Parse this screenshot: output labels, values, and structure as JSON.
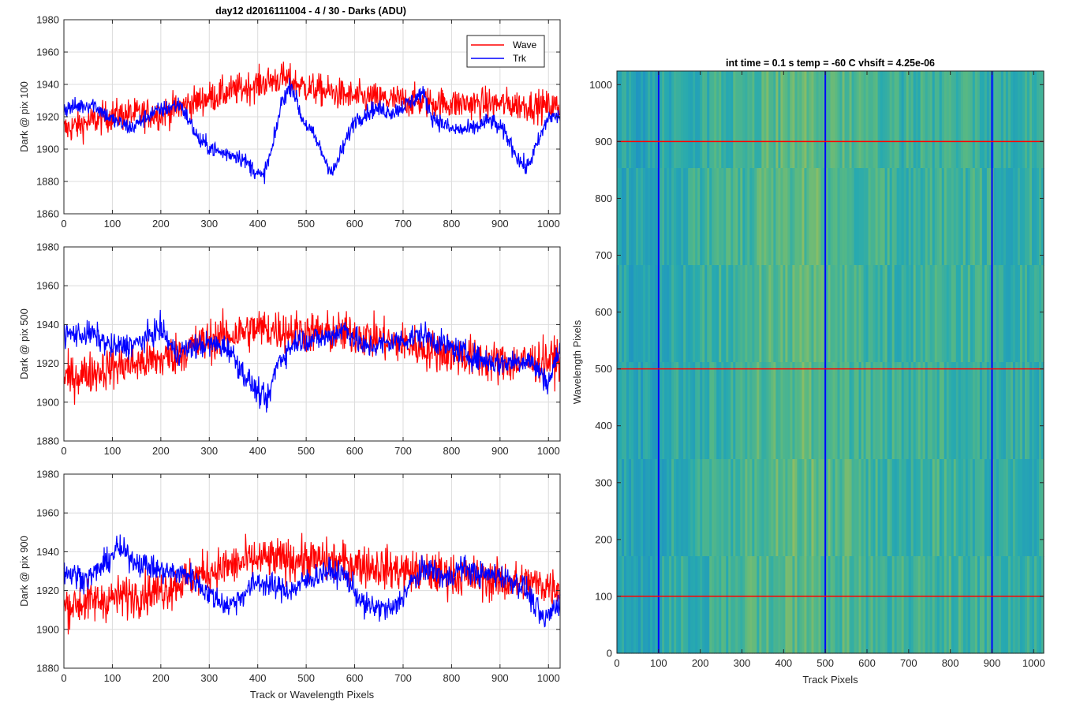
{
  "figure": {
    "title": "day12 d2016111004 - 4 / 30 - Darks (ADU)"
  },
  "chart_data": [
    {
      "type": "line",
      "ylabel": "Dark @ pix 100",
      "xlabel": "",
      "xlim": [
        0,
        1024
      ],
      "ylim": [
        1860,
        1980
      ],
      "xticks": [
        0,
        100,
        200,
        300,
        400,
        500,
        600,
        700,
        800,
        900,
        1000
      ],
      "yticks": [
        1860,
        1880,
        1900,
        1920,
        1940,
        1960,
        1980
      ],
      "grid": true,
      "legend": "top-right",
      "series": [
        {
          "name": "Wave",
          "color": "#ff0000",
          "trend": [
            [
              0,
              1912
            ],
            [
              100,
              1921
            ],
            [
              200,
              1922
            ],
            [
              300,
              1932
            ],
            [
              400,
              1940
            ],
            [
              450,
              1944
            ],
            [
              500,
              1938
            ],
            [
              600,
              1932
            ],
            [
              700,
              1930
            ],
            [
              800,
              1928
            ],
            [
              900,
              1928
            ],
            [
              1024,
              1926
            ]
          ],
          "noise": 9
        },
        {
          "name": "Trk",
          "color": "#0000ff",
          "trend": [
            [
              0,
              1925
            ],
            [
              60,
              1928
            ],
            [
              100,
              1918
            ],
            [
              140,
              1913
            ],
            [
              180,
              1922
            ],
            [
              240,
              1928
            ],
            [
              280,
              1905
            ],
            [
              320,
              1898
            ],
            [
              360,
              1896
            ],
            [
              390,
              1888
            ],
            [
              410,
              1882
            ],
            [
              430,
              1900
            ],
            [
              450,
              1930
            ],
            [
              470,
              1940
            ],
            [
              490,
              1920
            ],
            [
              520,
              1906
            ],
            [
              540,
              1893
            ],
            [
              555,
              1885
            ],
            [
              575,
              1900
            ],
            [
              600,
              1918
            ],
            [
              640,
              1925
            ],
            [
              680,
              1923
            ],
            [
              720,
              1930
            ],
            [
              740,
              1935
            ],
            [
              760,
              1920
            ],
            [
              800,
              1912
            ],
            [
              840,
              1912
            ],
            [
              880,
              1918
            ],
            [
              910,
              1910
            ],
            [
              940,
              1893
            ],
            [
              955,
              1888
            ],
            [
              980,
              1905
            ],
            [
              1000,
              1920
            ],
            [
              1024,
              1920
            ]
          ],
          "noise": 5
        }
      ]
    },
    {
      "type": "line",
      "ylabel": "Dark @ pix 500",
      "xlabel": "",
      "xlim": [
        0,
        1024
      ],
      "ylim": [
        1880,
        1980
      ],
      "xticks": [
        0,
        100,
        200,
        300,
        400,
        500,
        600,
        700,
        800,
        900,
        1000
      ],
      "yticks": [
        1880,
        1900,
        1920,
        1940,
        1960,
        1980
      ],
      "grid": true,
      "series": [
        {
          "name": "Wave",
          "color": "#ff0000",
          "trend": [
            [
              0,
              1912
            ],
            [
              100,
              1918
            ],
            [
              200,
              1922
            ],
            [
              300,
              1932
            ],
            [
              400,
              1938
            ],
            [
              500,
              1936
            ],
            [
              600,
              1935
            ],
            [
              700,
              1930
            ],
            [
              800,
              1925
            ],
            [
              900,
              1920
            ],
            [
              1024,
              1922
            ]
          ],
          "noise": 10
        },
        {
          "name": "Trk",
          "color": "#0000ff",
          "trend": [
            [
              0,
              1935
            ],
            [
              60,
              1935
            ],
            [
              100,
              1928
            ],
            [
              150,
              1930
            ],
            [
              200,
              1938
            ],
            [
              230,
              1925
            ],
            [
              260,
              1928
            ],
            [
              300,
              1930
            ],
            [
              340,
              1928
            ],
            [
              370,
              1915
            ],
            [
              400,
              1905
            ],
            [
              420,
              1900
            ],
            [
              440,
              1920
            ],
            [
              480,
              1932
            ],
            [
              540,
              1933
            ],
            [
              580,
              1938
            ],
            [
              620,
              1928
            ],
            [
              660,
              1930
            ],
            [
              700,
              1932
            ],
            [
              740,
              1935
            ],
            [
              780,
              1930
            ],
            [
              820,
              1926
            ],
            [
              860,
              1922
            ],
            [
              900,
              1920
            ],
            [
              960,
              1922
            ],
            [
              1000,
              1910
            ],
            [
              1024,
              1928
            ]
          ],
          "noise": 6
        }
      ]
    },
    {
      "type": "line",
      "ylabel": "Dark @ pix 900",
      "xlabel": "Track or Wavelength Pixels",
      "xlim": [
        0,
        1024
      ],
      "ylim": [
        1880,
        1980
      ],
      "xticks": [
        0,
        100,
        200,
        300,
        400,
        500,
        600,
        700,
        800,
        900,
        1000
      ],
      "yticks": [
        1880,
        1900,
        1920,
        1940,
        1960,
        1980
      ],
      "grid": true,
      "series": [
        {
          "name": "Wave",
          "color": "#ff0000",
          "trend": [
            [
              0,
              1912
            ],
            [
              100,
              1916
            ],
            [
              200,
              1920
            ],
            [
              300,
              1930
            ],
            [
              400,
              1936
            ],
            [
              500,
              1936
            ],
            [
              600,
              1934
            ],
            [
              700,
              1930
            ],
            [
              800,
              1928
            ],
            [
              900,
              1925
            ],
            [
              1024,
              1922
            ]
          ],
          "noise": 10
        },
        {
          "name": "Trk",
          "color": "#0000ff",
          "trend": [
            [
              0,
              1930
            ],
            [
              50,
              1926
            ],
            [
              90,
              1935
            ],
            [
              110,
              1942
            ],
            [
              150,
              1935
            ],
            [
              200,
              1930
            ],
            [
              260,
              1928
            ],
            [
              300,
              1918
            ],
            [
              340,
              1912
            ],
            [
              370,
              1918
            ],
            [
              400,
              1925
            ],
            [
              430,
              1922
            ],
            [
              470,
              1920
            ],
            [
              500,
              1925
            ],
            [
              540,
              1930
            ],
            [
              580,
              1928
            ],
            [
              620,
              1912
            ],
            [
              680,
              1910
            ],
            [
              720,
              1925
            ],
            [
              750,
              1932
            ],
            [
              790,
              1926
            ],
            [
              820,
              1932
            ],
            [
              860,
              1928
            ],
            [
              900,
              1928
            ],
            [
              950,
              1922
            ],
            [
              990,
              1904
            ],
            [
              1024,
              1915
            ]
          ],
          "noise": 6
        }
      ]
    },
    {
      "type": "heatmap",
      "title": "int time = 0.1 s   temp = -60 C   vhsift = 4.25e-06",
      "xlabel": "Track Pixels",
      "ylabel": "Wavelength Pixels",
      "xlim": [
        0,
        1024
      ],
      "ylim": [
        0,
        1024
      ],
      "xticks": [
        0,
        100,
        200,
        300,
        400,
        500,
        600,
        700,
        800,
        900,
        1000
      ],
      "yticks": [
        0,
        100,
        200,
        300,
        400,
        500,
        600,
        700,
        800,
        900,
        1000
      ],
      "colormap": "parula",
      "vertical_lines": {
        "color": "#0000ff",
        "x": [
          100,
          500,
          900
        ]
      },
      "horizontal_lines": {
        "color": "#ff0000",
        "y": [
          100,
          500,
          900
        ]
      }
    }
  ]
}
